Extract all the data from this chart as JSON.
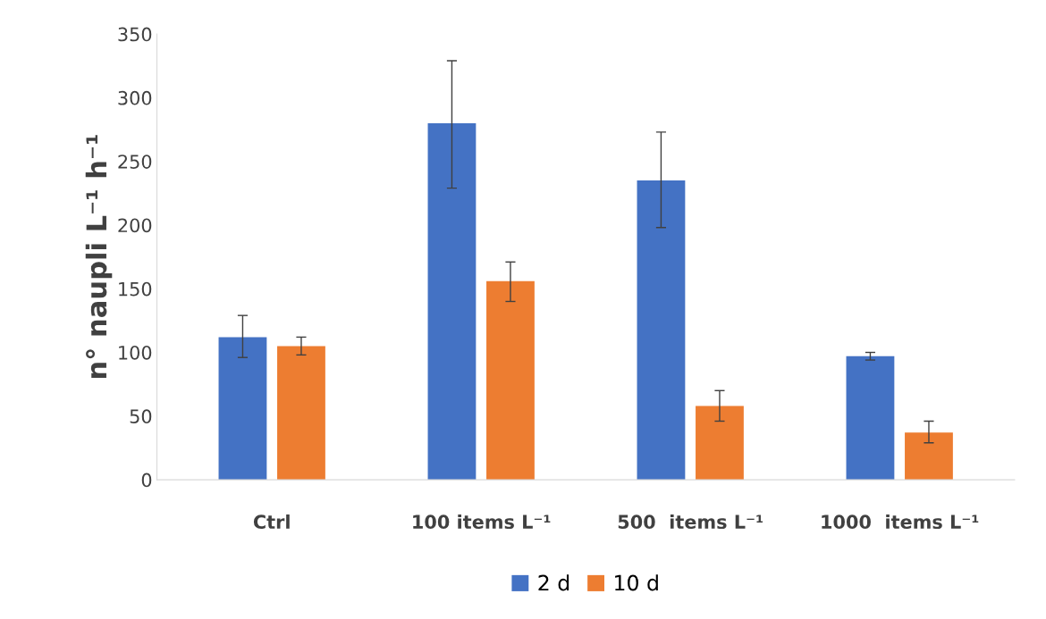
{
  "chart_data": {
    "type": "bar",
    "ylabel": "n° naupli L⁻¹ h⁻¹",
    "categories": [
      "Ctrl",
      "100 items L⁻¹",
      "500  items L⁻¹",
      "1000  items L⁻¹"
    ],
    "series": [
      {
        "name": "2 d",
        "color": "#4472c4",
        "values": [
          112,
          280,
          235,
          97
        ],
        "errors": [
          [
            96,
            129
          ],
          [
            229,
            329
          ],
          [
            198,
            273
          ],
          [
            94,
            100
          ]
        ]
      },
      {
        "name": "10 d",
        "color": "#ed7d31",
        "values": [
          105,
          156,
          58,
          37
        ],
        "errors": [
          [
            98,
            112
          ],
          [
            140,
            171
          ],
          [
            46,
            70
          ],
          [
            29,
            46
          ]
        ]
      }
    ],
    "ylim": [
      0,
      350
    ],
    "yticks": [
      0,
      50,
      100,
      150,
      200,
      250,
      300,
      350
    ],
    "grid": false,
    "legend": "bottom"
  }
}
